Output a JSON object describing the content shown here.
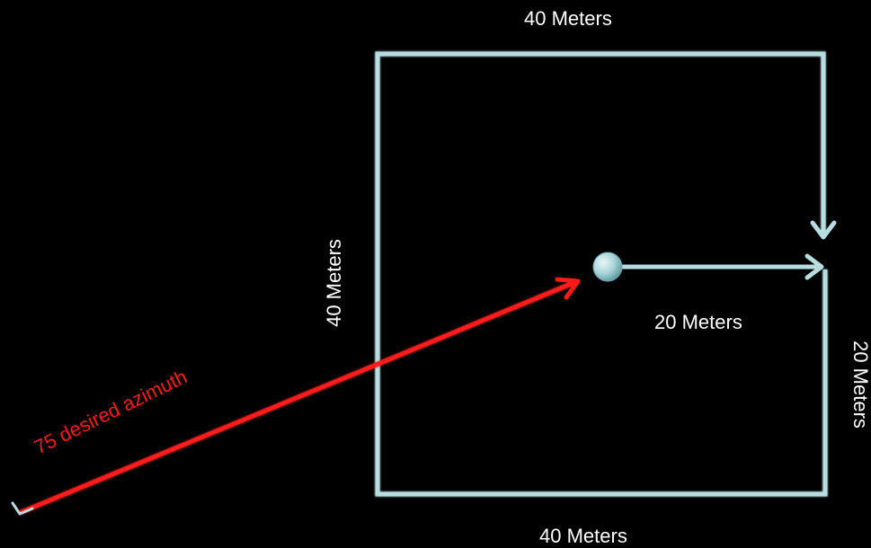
{
  "labels": {
    "top": "40 Meters",
    "bottom": "40 Meters",
    "left": "40 Meters",
    "right": "20 Meters",
    "center": "20 Meters",
    "azimuth": "75 desired azimuth"
  },
  "colors": {
    "background": "#000000",
    "path": "#b7dde0",
    "azimuth": "#ff1a1a",
    "marker": "#8ec3c9",
    "text": "#ffffff"
  }
}
